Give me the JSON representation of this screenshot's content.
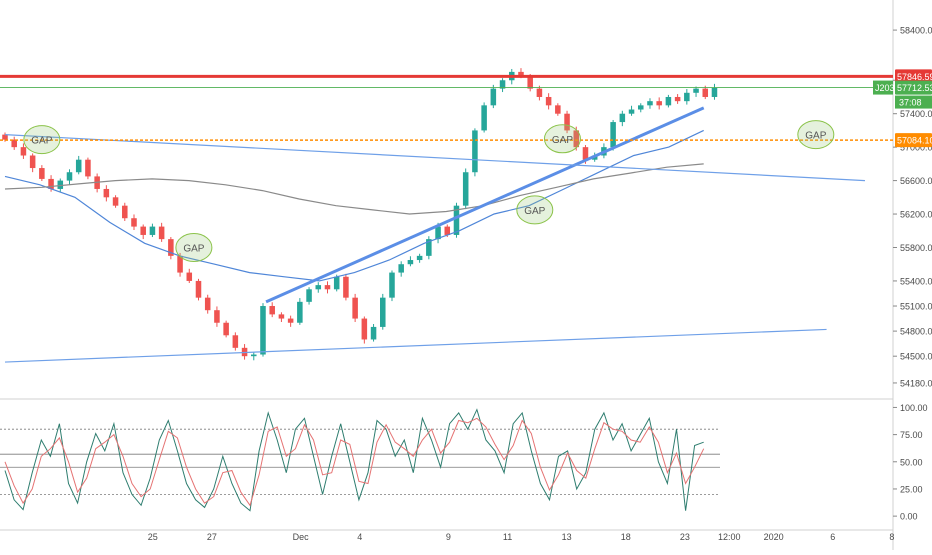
{
  "chart_data": [
    {
      "type": "candlestick",
      "title": "",
      "xlabel": "",
      "ylabel": "",
      "ylim": [
        54000,
        58700
      ],
      "y_ticks": [
        54180,
        54500,
        54800,
        55100,
        55400,
        55800,
        56200,
        56600,
        57000,
        57400,
        57800,
        58400
      ],
      "y_tick_labels": [
        "54180.00",
        "54500.00",
        "54800.00",
        "55100.00",
        "55400.00",
        "55800.00",
        "56200.00",
        "56600.00",
        "57000.00",
        "57400.00",
        "57800.00",
        "58400.00"
      ],
      "x_ticks": [
        {
          "pos": 5,
          "label": "25"
        },
        {
          "pos": 7,
          "label": "27"
        },
        {
          "pos": 10,
          "label": "Dec"
        },
        {
          "pos": 12,
          "label": "4"
        },
        {
          "pos": 15,
          "label": "9"
        },
        {
          "pos": 17,
          "label": "11"
        },
        {
          "pos": 19,
          "label": "13"
        },
        {
          "pos": 21,
          "label": "18"
        },
        {
          "pos": 23,
          "label": "23"
        },
        {
          "pos": 24.5,
          "label": "12:00"
        },
        {
          "pos": 26,
          "label": "2020"
        },
        {
          "pos": 28,
          "label": "6"
        },
        {
          "pos": 30,
          "label": "8"
        }
      ],
      "grid": false,
      "closes": [
        57090,
        57000,
        56900,
        56750,
        56620,
        56500,
        56600,
        56700,
        56850,
        56650,
        56500,
        56400,
        56300,
        56150,
        56050,
        55950,
        56050,
        55900,
        55700,
        55500,
        55400,
        55200,
        55050,
        54900,
        54750,
        54600,
        54500,
        54520,
        55100,
        55000,
        54950,
        54900,
        55150,
        55300,
        55350,
        55300,
        55450,
        55200,
        54950,
        54700,
        54850,
        55200,
        55500,
        55600,
        55650,
        55700,
        55900,
        56050,
        55950,
        56300,
        56700,
        57200,
        57500,
        57700,
        57800,
        57900,
        57850,
        57700,
        57600,
        57500,
        57400,
        57200,
        57000,
        56850,
        56900,
        57000,
        57300,
        57400,
        57450,
        57500,
        57550,
        57500,
        57600,
        57550,
        57650,
        57700,
        57600,
        57712
      ],
      "series": [
        {
          "values": [
            56650,
            56550,
            56400,
            56100,
            55850,
            55700,
            55600,
            55500,
            55450,
            55400,
            55500,
            55650,
            55850,
            56000,
            56200,
            56300,
            56500,
            56700,
            56900,
            57000,
            57200
          ]
        },
        {
          "values": [
            56500,
            56520,
            56560,
            56600,
            56620,
            56600,
            56550,
            56480,
            56380,
            56300,
            56250,
            56200,
            56230,
            56300,
            56420,
            56520,
            56620,
            56690,
            56760,
            56800
          ]
        },
        {
          "values": [
            57200,
            57000,
            56800,
            56650
          ]
        },
        {
          "values": [
            56500,
            56700,
            56900,
            57250
          ]
        }
      ],
      "resistance_line": {
        "value": 57846.59,
        "label": "57846.59",
        "color": "#e53935"
      },
      "support_line": {
        "value": 57084.1,
        "label": "57084.10",
        "color": "#ff8c00"
      },
      "last_price": {
        "symbol": "J203",
        "value": "57712.53",
        "countdown": "37:08",
        "color": "#4caf50"
      },
      "trendlines": [
        {
          "from": [
            34,
            55150
          ],
          "to": [
            91,
            57470
          ],
          "color": "#5b8ee6",
          "style": "thick"
        },
        {
          "from": [
            0,
            57150
          ],
          "to": [
            112,
            56600
          ],
          "color": "#6fa0e8"
        },
        {
          "from": [
            0,
            54430
          ],
          "to": [
            107,
            54820
          ],
          "color": "#6fa0e8"
        }
      ],
      "annotations": [
        {
          "text": "GAP",
          "x": 4,
          "y": 57090
        },
        {
          "text": "GAP",
          "x": 20.5,
          "y": 55800
        },
        {
          "text": "GAP",
          "x": 57.5,
          "y": 56250
        },
        {
          "text": "GAP",
          "x": 60.5,
          "y": 57100
        },
        {
          "text": "GAP",
          "x": 88,
          "y": 57150
        }
      ],
      "colors": {
        "up": "#26a69a",
        "down": "#ef5350",
        "ma_blue": "#4f86d8",
        "ma_grey": "#8a8a8a",
        "axis_text": "#4a4a4a"
      }
    },
    {
      "type": "line",
      "title": "",
      "ylim": [
        -10,
        105
      ],
      "y_ticks": [
        0,
        25,
        50,
        75,
        100
      ],
      "y_tick_labels": [
        "0.00",
        "25.00",
        "50.00",
        "75.00",
        "100.00"
      ],
      "reference_levels": [
        80,
        57,
        45,
        20
      ],
      "series": [
        {
          "color": "#2e7d6f",
          "values": [
            42,
            15,
            6,
            40,
            70,
            55,
            85,
            30,
            12,
            50,
            76,
            60,
            85,
            40,
            20,
            10,
            35,
            70,
            88,
            60,
            30,
            15,
            8,
            25,
            55,
            30,
            12,
            5,
            60,
            95,
            70,
            40,
            80,
            90,
            55,
            20,
            55,
            85,
            50,
            15,
            40,
            88,
            80,
            55,
            70,
            40,
            90,
            70,
            45,
            85,
            95,
            80,
            98,
            70,
            60,
            40,
            85,
            95,
            60,
            30,
            15,
            55,
            60,
            25,
            40,
            80,
            95,
            70,
            85,
            60,
            75,
            90,
            50,
            30,
            80,
            5,
            65,
            68
          ]
        },
        {
          "color": "#e57373",
          "values": [
            50,
            28,
            12,
            25,
            55,
            62,
            72,
            50,
            22,
            35,
            62,
            68,
            75,
            55,
            30,
            18,
            25,
            52,
            78,
            72,
            45,
            25,
            12,
            18,
            40,
            42,
            22,
            10,
            38,
            78,
            82,
            55,
            62,
            84,
            70,
            38,
            40,
            70,
            66,
            32,
            30,
            68,
            84,
            68,
            62,
            55,
            70,
            80,
            58,
            68,
            88,
            86,
            90,
            82,
            66,
            52,
            65,
            88,
            76,
            45,
            24,
            38,
            58,
            42,
            35,
            62,
            86,
            80,
            78,
            70,
            68,
            82,
            68,
            40,
            58,
            30,
            45,
            62
          ]
        }
      ]
    }
  ]
}
